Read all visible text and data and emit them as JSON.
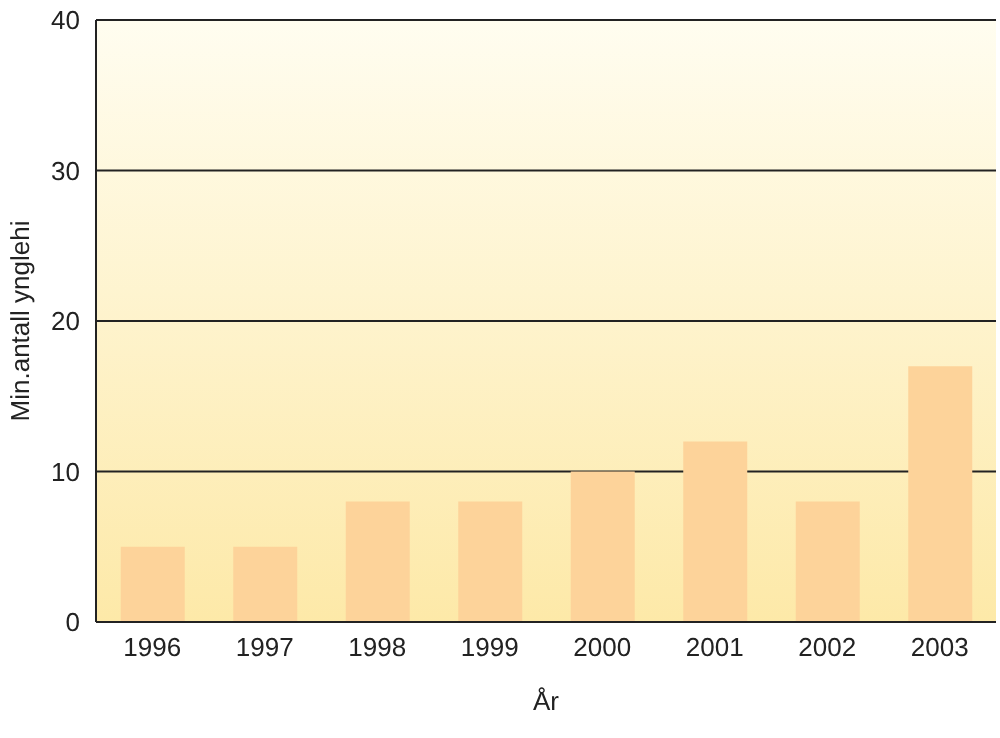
{
  "chart_data": {
    "type": "bar",
    "xlabel": "År",
    "ylabel": "Min.antall ynglehi",
    "categories": [
      "1996",
      "1997",
      "1998",
      "1999",
      "2000",
      "2001",
      "2002",
      "2003"
    ],
    "values": [
      5,
      5,
      8,
      8,
      10,
      12,
      8,
      17
    ],
    "color": "#fdd39a",
    "ylim": [
      0,
      40
    ],
    "yticks": [
      0,
      10,
      20,
      30,
      40
    ],
    "grid": "y"
  }
}
